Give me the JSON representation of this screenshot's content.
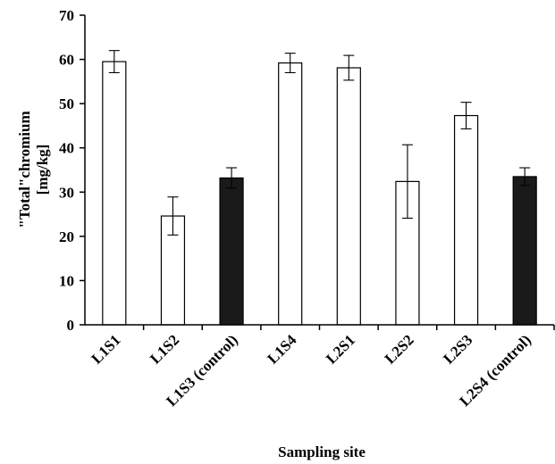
{
  "chart_data": {
    "type": "bar",
    "title": "",
    "xlabel": "Sampling site",
    "ylabel_line1": "\"Total\"chromium",
    "ylabel_line2": "[mg/kg]",
    "ylim": [
      0,
      70
    ],
    "yticks": [
      0,
      10,
      20,
      30,
      40,
      50,
      60,
      70
    ],
    "grid": false,
    "categories": [
      "L1S1",
      "L1S2",
      "L1S3 (control)",
      "L1S4",
      "L2S1",
      "L2S2",
      "L2S3",
      "L2S4 (control)"
    ],
    "values": [
      59.5,
      24.6,
      33.2,
      59.2,
      58.1,
      32.4,
      47.3,
      33.5
    ],
    "error": [
      2.5,
      4.3,
      2.3,
      2.2,
      2.8,
      8.3,
      3.0,
      2.0
    ],
    "is_control": [
      false,
      false,
      true,
      false,
      false,
      false,
      false,
      true
    ],
    "colors": {
      "bar": "#ffffff",
      "control": "#1a1a1a",
      "stroke": "#000000"
    }
  }
}
